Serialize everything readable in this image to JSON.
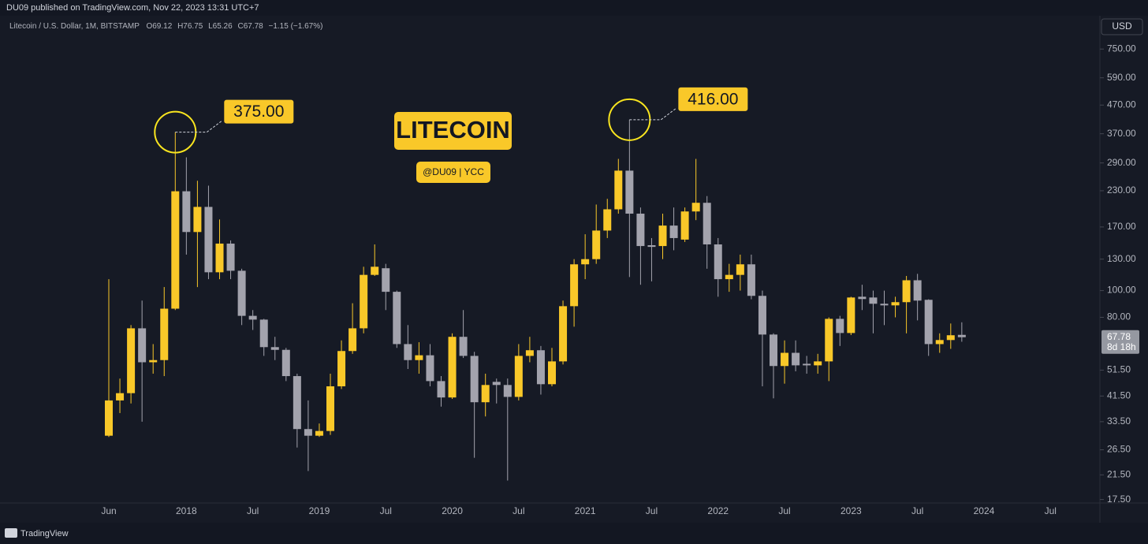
{
  "chart_data": {
    "type": "candlestick",
    "title": "LITECOIN",
    "subtitle": "@DU09 | YCC",
    "symbol": "Litecoin / U.S. Dollar, 1M, BITSTAMP",
    "legend_ohlc": [
      "O69.12",
      "H76.75",
      "L65.26",
      "C67.78",
      "−1.15 (−1.67%)"
    ],
    "currency": "USD",
    "countdown": "8d 18h",
    "categories": [
      "Jun",
      null,
      null,
      null,
      null,
      null,
      null,
      "2018",
      null,
      null,
      null,
      null,
      null,
      "Jul",
      null,
      null,
      null,
      null,
      null,
      "2019",
      null,
      null,
      null,
      null,
      null,
      "Jul",
      null,
      null,
      null,
      null,
      null,
      "2020",
      null,
      null,
      null,
      null,
      null,
      "Jul",
      null,
      null,
      null,
      null,
      null,
      "2021",
      null,
      null,
      null,
      null,
      null,
      "Jul",
      null,
      null,
      null,
      null,
      null,
      "2022",
      null,
      null,
      null,
      null,
      null,
      "Jul",
      null,
      null,
      null,
      null,
      null,
      "2023",
      null,
      null,
      null,
      null,
      null,
      "Jul",
      null,
      null,
      null,
      null,
      null,
      "2024",
      null,
      null,
      null,
      null,
      null,
      "Jul"
    ],
    "open": [
      29.8,
      40,
      42.5,
      73,
      55,
      56,
      86,
      229,
      163,
      201,
      116.5,
      148,
      118,
      81,
      78.5,
      62.4,
      61,
      49,
      31.5,
      29.8,
      31,
      45,
      60.4,
      73,
      114,
      120.5,
      99,
      64,
      56,
      58.3,
      47,
      41,
      68,
      58,
      39.4,
      46.7,
      45.5,
      41.2,
      58,
      60.8,
      45.8,
      55.4,
      87.8,
      124.5,
      130,
      165,
      197,
      272,
      190,
      146,
      145,
      172,
      153,
      193.5,
      208,
      147,
      110,
      114,
      124.5,
      95.7,
      69.3,
      53.3,
      59.5,
      54.3,
      53.6,
      55.4,
      79,
      70.2,
      95,
      94.4,
      89.6,
      88.4,
      90.8,
      109,
      92.6,
      64,
      66.2,
      69.12,
      null,
      null,
      null,
      null,
      null,
      null,
      null,
      null
    ],
    "high": [
      110,
      48,
      75,
      92,
      64,
      103,
      375,
      304,
      250,
      240,
      181,
      152,
      120,
      85,
      79,
      68,
      62,
      50,
      40,
      33,
      50,
      66,
      90,
      122,
      147,
      125,
      100,
      75,
      65,
      64,
      49,
      70,
      85,
      60,
      50,
      48,
      48,
      64,
      68,
      63,
      62,
      92,
      130,
      160,
      205,
      215,
      300,
      416,
      200,
      155,
      190,
      200,
      200,
      300,
      220,
      155,
      125,
      135,
      135,
      100,
      70,
      66,
      66,
      58,
      59,
      80,
      81,
      95,
      105,
      100,
      100,
      95,
      113,
      115,
      93,
      70,
      76,
      76.75,
      null,
      null,
      null,
      null,
      null,
      null,
      null,
      null
    ],
    "low": [
      29.5,
      36,
      39,
      33.5,
      50,
      49,
      85,
      135,
      103,
      110,
      110,
      110,
      75,
      72,
      58,
      56,
      47,
      27,
      22.2,
      29.5,
      30,
      44,
      59,
      70,
      113,
      85,
      62,
      52,
      50,
      45,
      38,
      40.5,
      57,
      24.8,
      35,
      39,
      20.5,
      40,
      55,
      42,
      45,
      54,
      74,
      110,
      125,
      155,
      190,
      112,
      105,
      108,
      130,
      140,
      150,
      180,
      120,
      95,
      99,
      100,
      93,
      45,
      40.7,
      46,
      51,
      50,
      50,
      47,
      63,
      69,
      85,
      70,
      75,
      80,
      70,
      78,
      58,
      59.5,
      61.5,
      65.26,
      null,
      null,
      null,
      null,
      null,
      null,
      null,
      null
    ],
    "close": [
      40,
      42.5,
      73,
      55,
      56,
      86,
      229,
      163,
      201,
      116.5,
      148,
      118,
      81,
      78.5,
      62.4,
      61,
      49,
      31.5,
      29.8,
      31,
      45,
      60.4,
      73,
      114,
      122,
      99,
      64,
      56,
      58.3,
      47,
      41,
      68,
      58,
      39.4,
      45.5,
      45.5,
      41.2,
      58,
      60.8,
      45.8,
      55.4,
      87.8,
      124.5,
      130,
      165,
      197,
      272,
      190,
      145,
      144,
      172,
      155,
      193.5,
      208,
      147,
      110,
      114,
      124.5,
      95.7,
      69.3,
      53.3,
      59.5,
      53.6,
      53.6,
      55.4,
      79,
      70.2,
      94.4,
      93.2,
      89.6,
      88.4,
      90.8,
      109,
      92,
      64,
      66.2,
      68.9,
      67.78,
      null,
      null,
      null,
      null,
      null,
      null,
      null,
      null
    ],
    "up_color": "#f9c829",
    "down_color": "#a3a3ad",
    "ylim": [
      17,
      990
    ],
    "log_scale": true,
    "grid": false,
    "yticks": [
      {
        "value": 750,
        "label": "750.00"
      },
      {
        "value": 590,
        "label": "590.00"
      },
      {
        "value": 470,
        "label": "470.00"
      },
      {
        "value": 370,
        "label": "370.00"
      },
      {
        "value": 290,
        "label": "290.00"
      },
      {
        "value": 230,
        "label": "230.00"
      },
      {
        "value": 170,
        "label": "170.00"
      },
      {
        "value": 130,
        "label": "130.00"
      },
      {
        "value": 100,
        "label": "100.00"
      },
      {
        "value": 80,
        "label": "80.00"
      },
      {
        "value": 51.5,
        "label": "51.50"
      },
      {
        "value": 41.5,
        "label": "41.50"
      },
      {
        "value": 33.5,
        "label": "33.50"
      },
      {
        "value": 26.5,
        "label": "26.50"
      },
      {
        "value": 21.5,
        "label": "21.50"
      },
      {
        "value": 17.5,
        "label": "17.50"
      }
    ],
    "annotations": [
      {
        "value": 375,
        "label": "375.00"
      },
      {
        "value": 416,
        "label": "416.00"
      }
    ]
  },
  "header": {
    "published": "DU09 published on TradingView.com, Nov 22, 2023 13:31 UTC+7"
  },
  "footer": {
    "brand": "TradingView"
  }
}
